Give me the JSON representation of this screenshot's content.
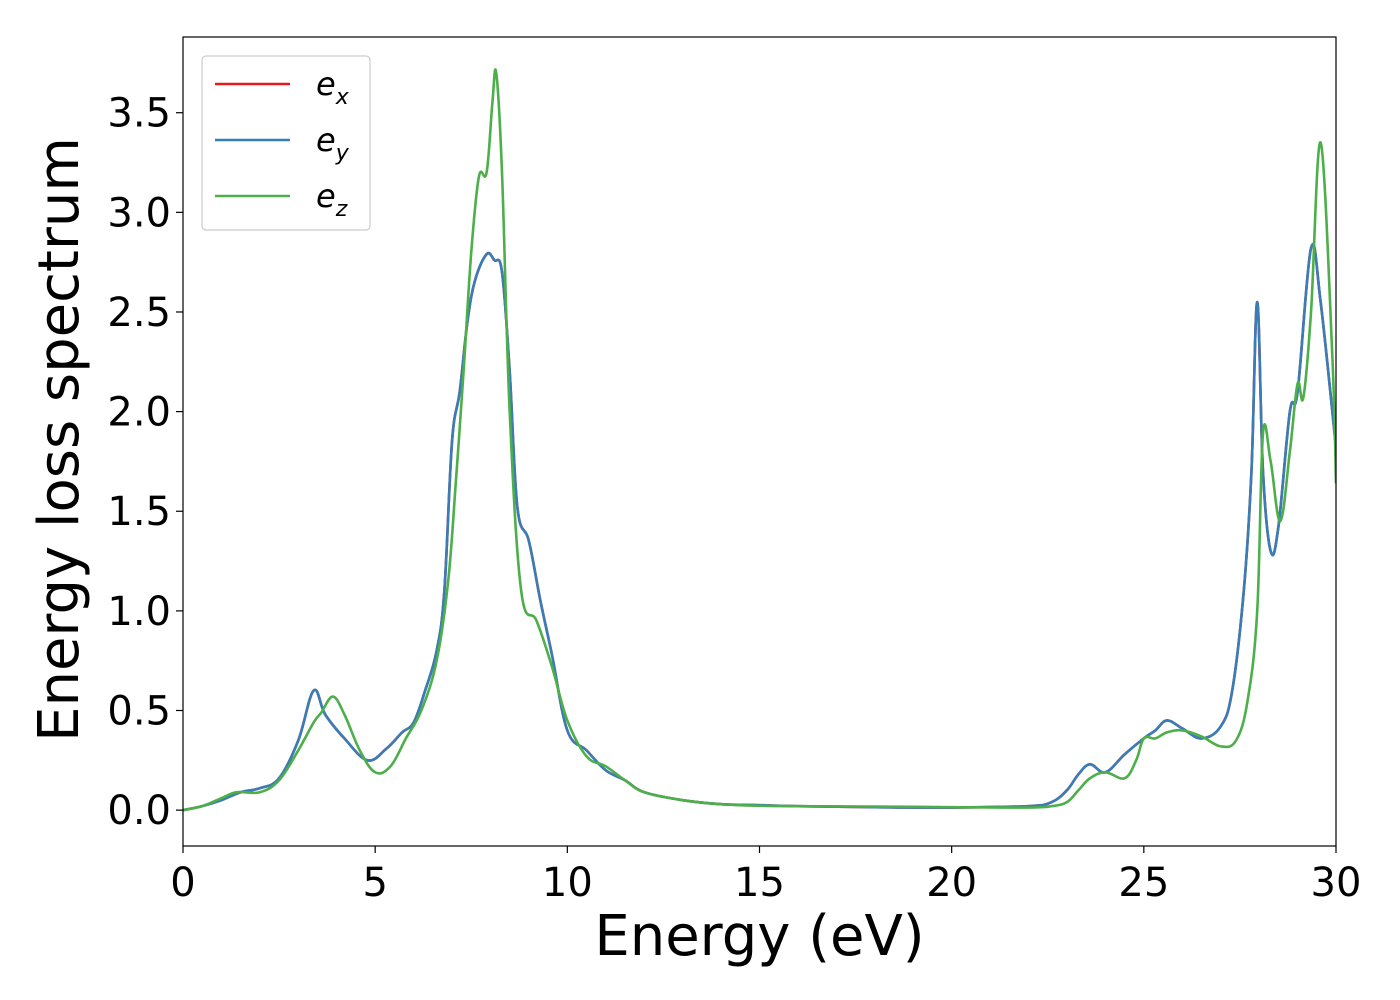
{
  "chart_data": {
    "type": "line",
    "xlabel": "Energy (eV)",
    "ylabel": "Energy loss spectrum",
    "xlim": [
      0,
      30
    ],
    "ylim": [
      -0.18,
      3.88
    ],
    "xticks": [
      0,
      5,
      10,
      15,
      20,
      25,
      30
    ],
    "xtick_labels": [
      "0",
      "5",
      "10",
      "15",
      "20",
      "25",
      "30"
    ],
    "yticks": [
      0.0,
      0.5,
      1.0,
      1.5,
      2.0,
      2.5,
      3.0,
      3.5
    ],
    "ytick_labels": [
      "0.0",
      "0.5",
      "1.0",
      "1.5",
      "2.0",
      "2.5",
      "3.0",
      "3.5"
    ],
    "grid": false,
    "legend_position": "top-left",
    "series": [
      {
        "name": "e",
        "subscript": "x",
        "color": "#e41a1c",
        "x": [
          0,
          0.5,
          1,
          1.5,
          2,
          2.5,
          3,
          3.4,
          3.7,
          4.2,
          4.8,
          5.3,
          5.7,
          6,
          6.3,
          6.6,
          6.8,
          7,
          7.2,
          7.4,
          7.6,
          7.9,
          8.1,
          8.3,
          8.5,
          8.7,
          9,
          9.3,
          9.6,
          10,
          10.5,
          11,
          11.5,
          12,
          13,
          14,
          15,
          16,
          18,
          20,
          22,
          22.6,
          23,
          23.3,
          23.6,
          24,
          24.5,
          25,
          25.3,
          25.6,
          26,
          26.5,
          27,
          27.3,
          27.6,
          27.8,
          27.95,
          28.1,
          28.3,
          28.5,
          28.8,
          29,
          29.35,
          29.6,
          30
        ],
        "y": [
          0,
          0.02,
          0.05,
          0.09,
          0.11,
          0.16,
          0.35,
          0.6,
          0.48,
          0.36,
          0.25,
          0.31,
          0.39,
          0.44,
          0.6,
          0.8,
          1.1,
          1.85,
          2.1,
          2.45,
          2.66,
          2.79,
          2.76,
          2.7,
          2.2,
          1.52,
          1.35,
          1.05,
          0.78,
          0.4,
          0.3,
          0.2,
          0.15,
          0.09,
          0.05,
          0.03,
          0.025,
          0.02,
          0.015,
          0.013,
          0.02,
          0.04,
          0.1,
          0.18,
          0.23,
          0.19,
          0.28,
          0.36,
          0.4,
          0.45,
          0.41,
          0.36,
          0.42,
          0.6,
          1.1,
          1.7,
          2.55,
          1.7,
          1.3,
          1.42,
          2.0,
          2.1,
          2.82,
          2.55,
          1.82
        ]
      },
      {
        "name": "e",
        "subscript": "y",
        "color": "#377eb8",
        "x": [
          0,
          0.5,
          1,
          1.5,
          2,
          2.5,
          3,
          3.4,
          3.7,
          4.2,
          4.8,
          5.3,
          5.7,
          6,
          6.3,
          6.6,
          6.8,
          7,
          7.2,
          7.4,
          7.6,
          7.9,
          8.1,
          8.3,
          8.5,
          8.7,
          9,
          9.3,
          9.6,
          10,
          10.5,
          11,
          11.5,
          12,
          13,
          14,
          15,
          16,
          18,
          20,
          22,
          22.6,
          23,
          23.3,
          23.6,
          24,
          24.5,
          25,
          25.3,
          25.6,
          26,
          26.5,
          27,
          27.3,
          27.6,
          27.8,
          27.95,
          28.1,
          28.3,
          28.5,
          28.8,
          29,
          29.35,
          29.6,
          30
        ],
        "y": [
          0,
          0.02,
          0.05,
          0.09,
          0.11,
          0.16,
          0.35,
          0.6,
          0.48,
          0.36,
          0.25,
          0.31,
          0.39,
          0.44,
          0.6,
          0.8,
          1.1,
          1.85,
          2.1,
          2.45,
          2.66,
          2.79,
          2.76,
          2.7,
          2.2,
          1.52,
          1.35,
          1.05,
          0.78,
          0.4,
          0.3,
          0.2,
          0.15,
          0.09,
          0.05,
          0.03,
          0.025,
          0.02,
          0.015,
          0.013,
          0.02,
          0.04,
          0.1,
          0.18,
          0.23,
          0.19,
          0.28,
          0.36,
          0.4,
          0.45,
          0.41,
          0.36,
          0.42,
          0.6,
          1.1,
          1.7,
          2.55,
          1.7,
          1.3,
          1.42,
          2.0,
          2.1,
          2.82,
          2.55,
          1.82
        ]
      },
      {
        "name": "e",
        "subscript": "z",
        "color": "#4daf4a",
        "x": [
          0,
          0.5,
          1,
          1.4,
          2,
          2.5,
          3,
          3.4,
          3.6,
          3.9,
          4.2,
          4.6,
          5,
          5.4,
          5.8,
          6.2,
          6.6,
          6.9,
          7.1,
          7.3,
          7.5,
          7.7,
          7.9,
          8.05,
          8.15,
          8.3,
          8.5,
          8.8,
          9.2,
          9.6,
          10,
          10.5,
          11,
          11.5,
          12,
          13,
          14,
          15,
          16,
          18,
          20,
          22,
          22.6,
          23,
          23.3,
          23.6,
          24,
          24.5,
          24.8,
          25,
          25.3,
          25.6,
          26,
          26.5,
          27,
          27.4,
          27.7,
          27.95,
          28.1,
          28.3,
          28.55,
          28.8,
          29,
          29.15,
          29.35,
          29.6,
          29.9,
          30
        ],
        "y": [
          0,
          0.02,
          0.06,
          0.09,
          0.09,
          0.15,
          0.3,
          0.44,
          0.49,
          0.57,
          0.48,
          0.3,
          0.19,
          0.22,
          0.36,
          0.5,
          0.75,
          1.15,
          1.65,
          2.2,
          2.8,
          3.18,
          3.2,
          3.55,
          3.7,
          3.2,
          2.0,
          1.1,
          0.95,
          0.72,
          0.45,
          0.27,
          0.22,
          0.15,
          0.09,
          0.05,
          0.03,
          0.022,
          0.02,
          0.018,
          0.015,
          0.013,
          0.02,
          0.04,
          0.1,
          0.16,
          0.19,
          0.16,
          0.25,
          0.36,
          0.36,
          0.39,
          0.4,
          0.37,
          0.32,
          0.35,
          0.55,
          1.0,
          1.89,
          1.75,
          1.45,
          1.8,
          2.14,
          2.07,
          2.5,
          3.35,
          2.3,
          1.64
        ]
      }
    ]
  }
}
